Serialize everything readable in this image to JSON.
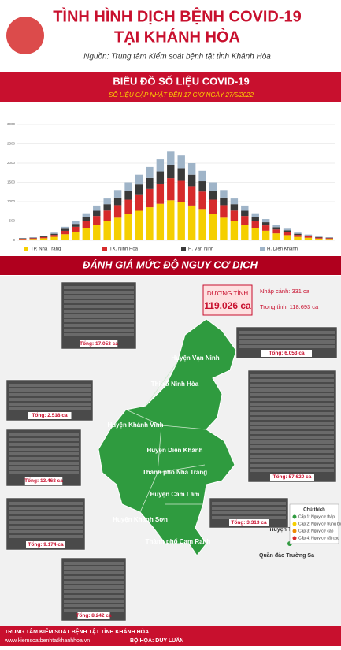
{
  "header": {
    "title_line1": "TÌNH HÌNH DỊCH BỆNH COVID-19",
    "title_line2": "TẠI KHÁNH HÒA",
    "source": "Nguồn: Trung tâm Kiểm soát bệnh tật tỉnh Khánh Hòa"
  },
  "chart_data": {
    "type": "bar",
    "stacked": true,
    "title": "BIỂU ĐỒ SỐ LIỆU COVID-19",
    "subtitle": "SỐ LIỆU CẬP NHẬT ĐẾN 17 GIỜ NGÀY 27/5/2022",
    "categories": [
      null,
      null,
      null,
      null,
      null,
      null,
      null,
      null,
      null,
      null,
      null,
      null,
      null,
      null,
      null,
      null,
      null,
      null,
      null,
      null,
      null,
      null,
      null,
      null,
      null,
      null,
      null,
      null,
      null,
      null
    ],
    "series": [
      {
        "name": "TP. Nha Trang",
        "color": "#f5cf00",
        "values": [
          27,
          36,
          54,
          90,
          158,
          225,
          315,
          405,
          495,
          585,
          675,
          765,
          855,
          945,
          1035,
          990,
          900,
          810,
          675,
          585,
          495,
          405,
          315,
          248,
          180,
          135,
          90,
          68,
          45,
          36
        ]
      },
      {
        "name": "TX. Ninh Hòa",
        "color": "#d62b2b",
        "values": [
          15,
          20,
          30,
          50,
          88,
          125,
          175,
          225,
          275,
          325,
          375,
          425,
          475,
          525,
          575,
          550,
          500,
          450,
          375,
          325,
          275,
          225,
          175,
          138,
          100,
          75,
          50,
          38,
          25,
          20
        ]
      },
      {
        "name": "H. Vạn Ninh",
        "color": "#3a3a3a",
        "values": [
          9,
          12,
          18,
          30,
          52,
          75,
          105,
          135,
          165,
          195,
          225,
          255,
          285,
          315,
          345,
          330,
          300,
          270,
          225,
          195,
          165,
          135,
          105,
          82,
          60,
          45,
          30,
          22,
          15,
          12
        ]
      },
      {
        "name": "H. Diên Khánh",
        "color": "#9fb4c8",
        "values": [
          9,
          12,
          18,
          30,
          52,
          75,
          105,
          135,
          165,
          195,
          225,
          255,
          285,
          315,
          345,
          330,
          300,
          270,
          225,
          195,
          165,
          135,
          105,
          82,
          60,
          45,
          30,
          22,
          15,
          12
        ]
      }
    ],
    "ylim": [
      0,
      3000
    ],
    "yticks": [
      0,
      500,
      1000,
      1500,
      2000,
      2500,
      3000
    ],
    "grid": true
  },
  "section_title": "ĐÁNH GIÁ MỨC ĐỘ NGUY CƠ DỊCH",
  "positive": {
    "label": "DƯƠNG TÍNH",
    "total": "119.026 ca",
    "imported": "Nhập cảnh: 331 ca",
    "local": "Trong tỉnh: 118.693 ca"
  },
  "districts": [
    "Huyện Vạn Ninh",
    "Thị xã Ninh Hòa",
    "Huyện Khánh Vĩnh",
    "Huyện Diên Khánh",
    "Thành phố Nha Trang",
    "Huyện Cam Lâm",
    "Huyện Khánh Sơn",
    "Thành phố Cam Ranh",
    "Huyện Trường Sa",
    "Quần đảo Trường Sa"
  ],
  "boxes": [
    "Tổng: 17.053 ca",
    "Tổng: 6.053 ca",
    "Tổng: 2.518 ca",
    "Tổng: 13.468 ca",
    "Tổng: 57.620 ca",
    "Tổng: 9.174 ca",
    "Tổng: 3.313 ca",
    "Tổng: 8.242 ca"
  ],
  "legend": {
    "title": "Chú thích",
    "levels": [
      {
        "label": "Cấp 1: Nguy cơ thấp",
        "color": "#2f9b3f"
      },
      {
        "label": "Cấp 2: Nguy cơ trung bình",
        "color": "#f5cf00"
      },
      {
        "label": "Cấp 3: Nguy cơ cao",
        "color": "#f08a00"
      },
      {
        "label": "Cấp 4: Nguy cơ rất cao",
        "color": "#d62b2b"
      }
    ]
  },
  "footer": {
    "org": "TRUNG TÂM KIỂM SOÁT BỆNH TẬT TỈNH KHÁNH HÒA",
    "site": "www.kiemsoatbenhtatkhanhhoa.vn",
    "credit": "BỘ HỌA: DUY LUÂN"
  }
}
